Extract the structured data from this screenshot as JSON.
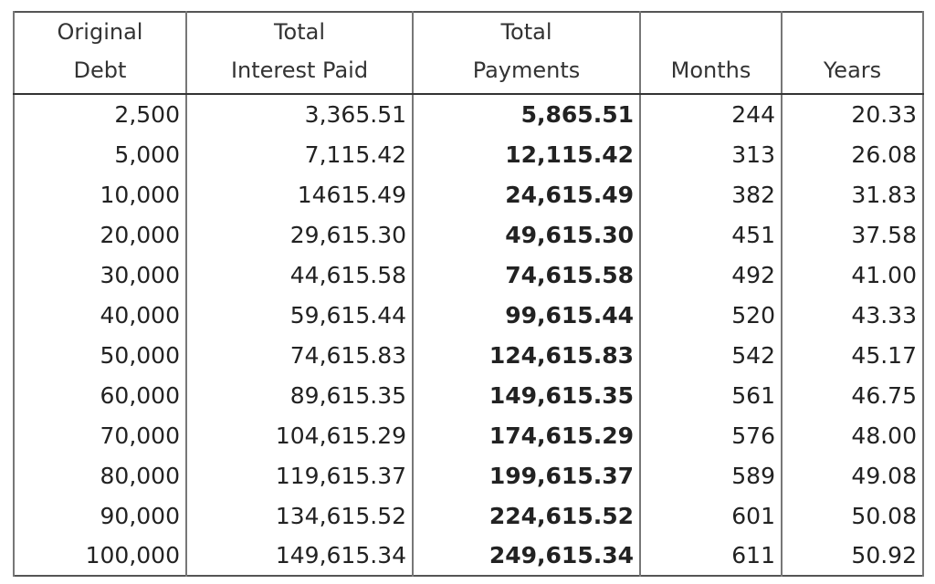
{
  "table": {
    "headers": [
      [
        "Original",
        "Debt"
      ],
      [
        "Total",
        "Interest Paid"
      ],
      [
        "Total",
        "Payments"
      ],
      [
        "Months"
      ],
      [
        "Years"
      ]
    ],
    "rows": [
      [
        "2,500",
        "3,365.51",
        "5,865.51",
        "244",
        "20.33"
      ],
      [
        "5,000",
        "7,115.42",
        "12,115.42",
        "313",
        "26.08"
      ],
      [
        "10,000",
        "14615.49",
        "24,615.49",
        "382",
        "31.83"
      ],
      [
        "20,000",
        "29,615.30",
        "49,615.30",
        "451",
        "37.58"
      ],
      [
        "30,000",
        "44,615.58",
        "74,615.58",
        "492",
        "41.00"
      ],
      [
        "40,000",
        "59,615.44",
        "99,615.44",
        "520",
        "43.33"
      ],
      [
        "50,000",
        "74,615.83",
        "124,615.83",
        "542",
        "45.17"
      ],
      [
        "60,000",
        "89,615.35",
        "149,615.35",
        "561",
        "46.75"
      ],
      [
        "70,000",
        "104,615.29",
        "174,615.29",
        "576",
        "48.00"
      ],
      [
        "80,000",
        "119,615.37",
        "199,615.37",
        "589",
        "49.08"
      ],
      [
        "90,000",
        "134,615.52",
        "224,615.52",
        "601",
        "50.08"
      ],
      [
        "100,000",
        "149,615.34",
        "249,615.34",
        "611",
        "50.92"
      ]
    ]
  }
}
